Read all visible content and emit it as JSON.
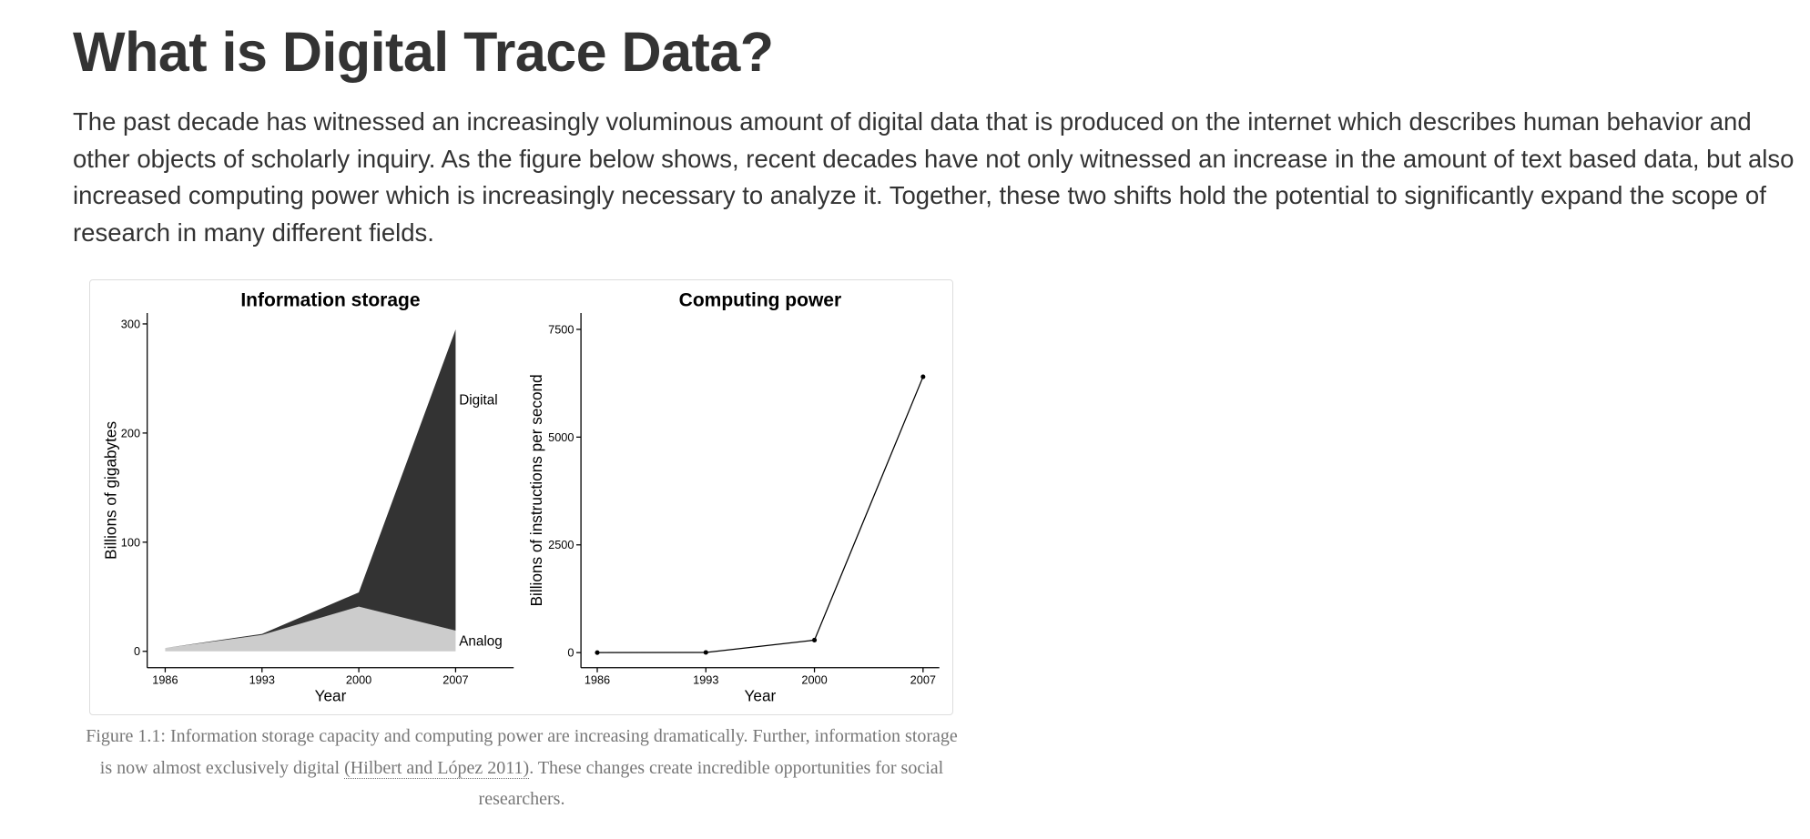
{
  "heading": "What is Digital Trace Data?",
  "paragraph": "The past decade has witnessed an increasingly voluminous amount of digital data that is produced on the internet which describes human behavior and other objects of scholarly inquiry. As the figure below shows, recent decades have not only witnessed an increase in the amount of text based data, but also increased computing power which is increasingly necessary to analyze it. Together, these two shifts hold the potential to significantly expand the scope of research in many different fields.",
  "chart_data": [
    {
      "type": "area",
      "title": "Information storage",
      "stacked": true,
      "x": [
        1986,
        1993,
        2000,
        2007
      ],
      "xlim": [
        1984.7,
        2011.2
      ],
      "xticks": [
        1986,
        1993,
        2000,
        2007
      ],
      "ylim": [
        -15,
        310
      ],
      "yticks": [
        0,
        100,
        200,
        300
      ],
      "xlabel": "Year",
      "ylabel": "Billions of gigabytes",
      "series": [
        {
          "name": "Analog",
          "color": "#cccccc",
          "label_color": "#808080",
          "values": [
            3,
            15,
            41,
            19
          ]
        },
        {
          "name": "Digital",
          "color": "#333333",
          "label_color": "#000000",
          "values": [
            0,
            1,
            13,
            276
          ]
        }
      ]
    },
    {
      "type": "line",
      "title": "Computing power",
      "x": [
        1986,
        1993,
        2000,
        2007
      ],
      "xlim": [
        1984.95,
        2008.05
      ],
      "xticks": [
        1986,
        1993,
        2000,
        2007
      ],
      "ylim": [
        -350,
        7880
      ],
      "yticks": [
        0,
        2500,
        5000,
        7500
      ],
      "xlabel": "Year",
      "ylabel": "Billions of instructions per second",
      "color": "#000000",
      "values": [
        0.3,
        4,
        290,
        6400
      ]
    }
  ],
  "caption": {
    "start": "Figure 1.1: Information storage capacity and computing power are increasing dramatically. Further, information storage is now almost exclusively digital ",
    "citation": "(Hilbert and López 2011)",
    "end": ". These changes create incredible opportunities for social researchers."
  }
}
